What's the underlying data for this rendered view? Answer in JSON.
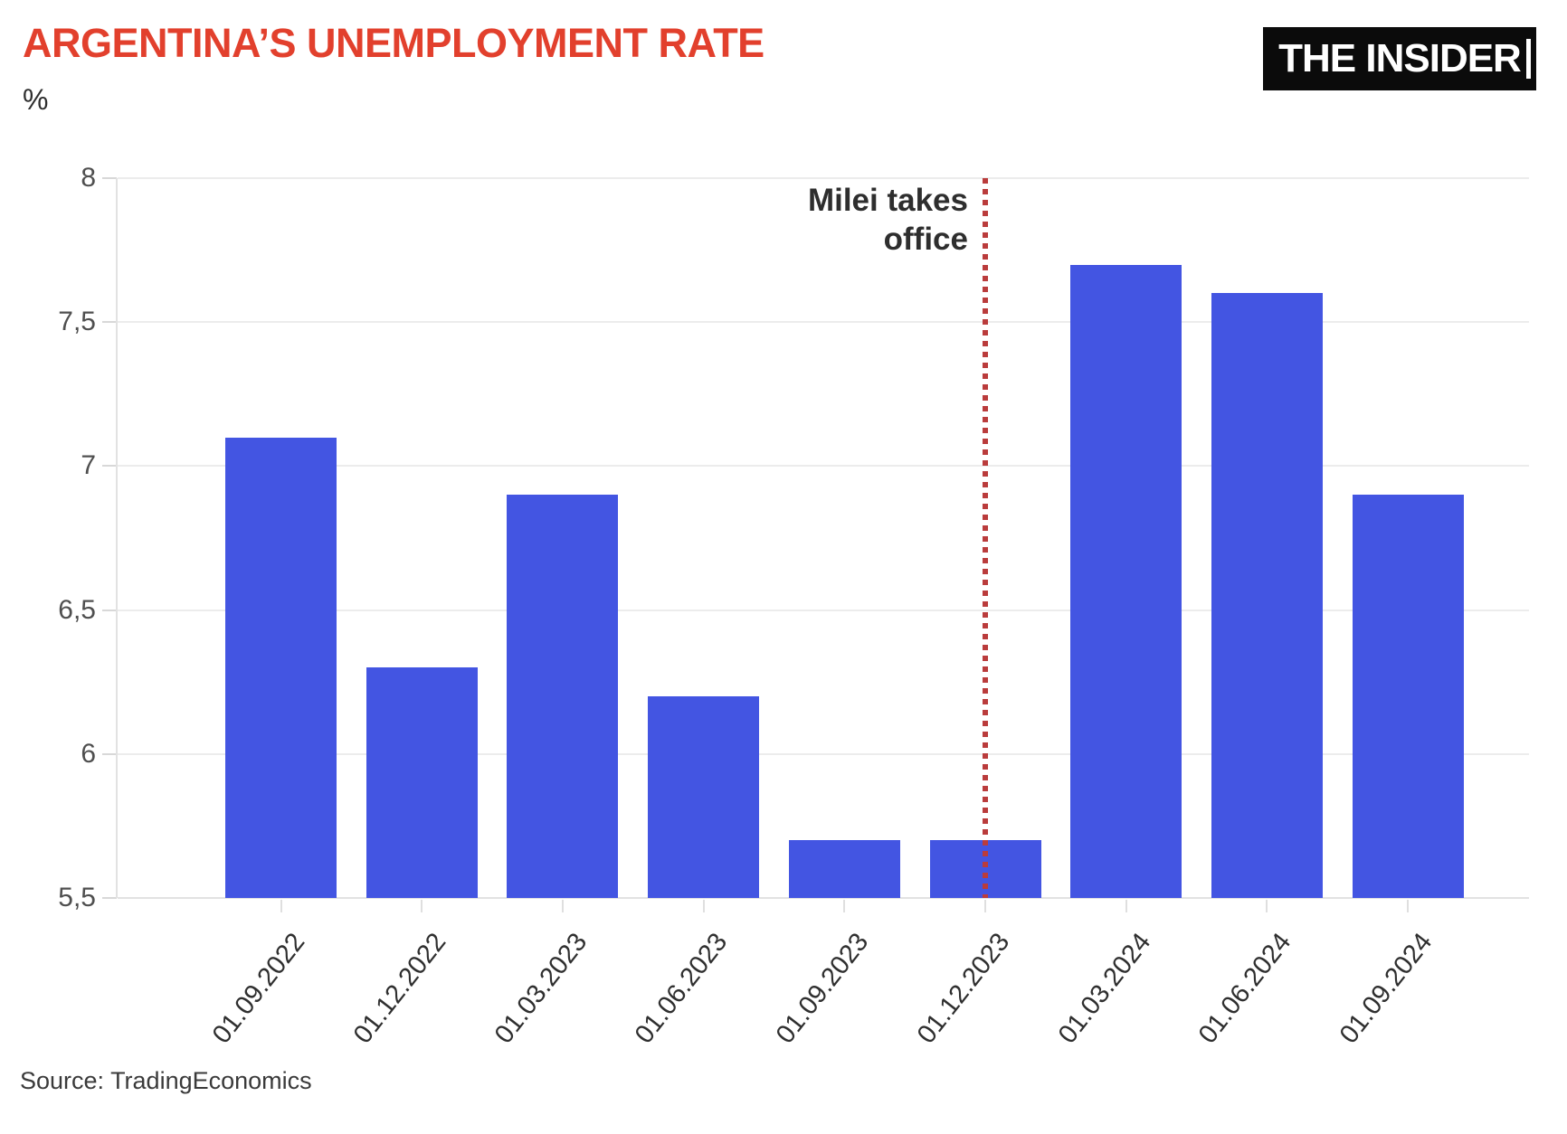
{
  "header": {
    "title": "ARGENTINA’S UNEMPLOYMENT RATE",
    "unit_label": "%",
    "brand": "THE INSIDER"
  },
  "annotation": {
    "line1": "Milei takes",
    "line2": "office"
  },
  "footer": {
    "source": "Source: TradingEconomics"
  },
  "colors": {
    "title_red": "#E2402D",
    "bar_blue": "#4355E2",
    "vline_red": "#BA3C3C",
    "gridline_gray": "#ECECEC",
    "axis_label_gray": "#4F4F4F",
    "text_dark": "#2E2E2E",
    "logo_bg": "#0B0B0B",
    "logo_text": "#FFFFFF"
  },
  "chart_data": {
    "type": "bar",
    "title": "ARGENTINA’S UNEMPLOYMENT RATE",
    "xlabel": "",
    "ylabel": "%",
    "categories": [
      "01.09.2022",
      "01.12.2022",
      "01.03.2023",
      "01.06.2023",
      "01.09.2023",
      "01.12.2023",
      "01.03.2024",
      "01.06.2024",
      "01.09.2024"
    ],
    "values": [
      7.1,
      6.3,
      6.9,
      6.2,
      5.7,
      5.7,
      7.7,
      7.6,
      6.9
    ],
    "ylim": [
      5.5,
      8
    ],
    "yticks": [
      8,
      7.5,
      7,
      6.5,
      6,
      5.5
    ],
    "ytick_labels": [
      "8",
      "7,5",
      "7",
      "6,5",
      "6",
      "5,5"
    ],
    "decimal_separator": ",",
    "grid": true,
    "legend": false,
    "annotation": {
      "text": "Milei takes office",
      "category": "01.12.2023",
      "category_index": 5,
      "marker": "red-dotted-vertical-line"
    }
  }
}
